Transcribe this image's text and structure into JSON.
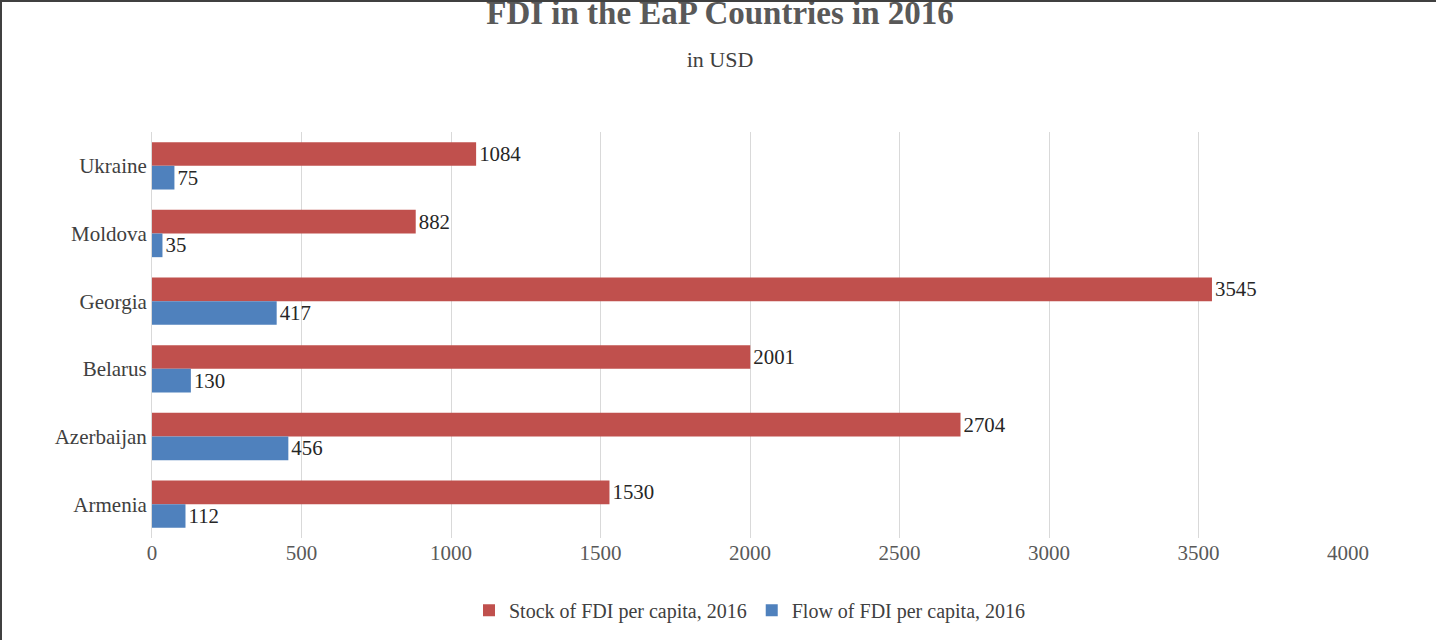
{
  "chart_data": {
    "type": "bar",
    "orientation": "horizontal",
    "title": "FDI in the EaP Countries in 2016",
    "subtitle": "in USD",
    "categories": [
      "Ukraine",
      "Moldova",
      "Georgia",
      "Belarus",
      "Azerbaijan",
      "Armenia"
    ],
    "series": [
      {
        "name": "Stock of FDI per capita, 2016",
        "color": "#c0504d",
        "values": [
          1084,
          882,
          3545,
          2001,
          2704,
          1530
        ]
      },
      {
        "name": "Flow of FDI per capita, 2016",
        "color": "#4f81bd",
        "values": [
          75,
          35,
          417,
          130,
          456,
          112
        ]
      }
    ],
    "xlim": [
      0,
      4000
    ],
    "xticks": [
      0,
      500,
      1000,
      1500,
      2000,
      2500,
      3000,
      3500,
      4000
    ],
    "grid": true,
    "data_labels": true,
    "legend": "bottom"
  }
}
